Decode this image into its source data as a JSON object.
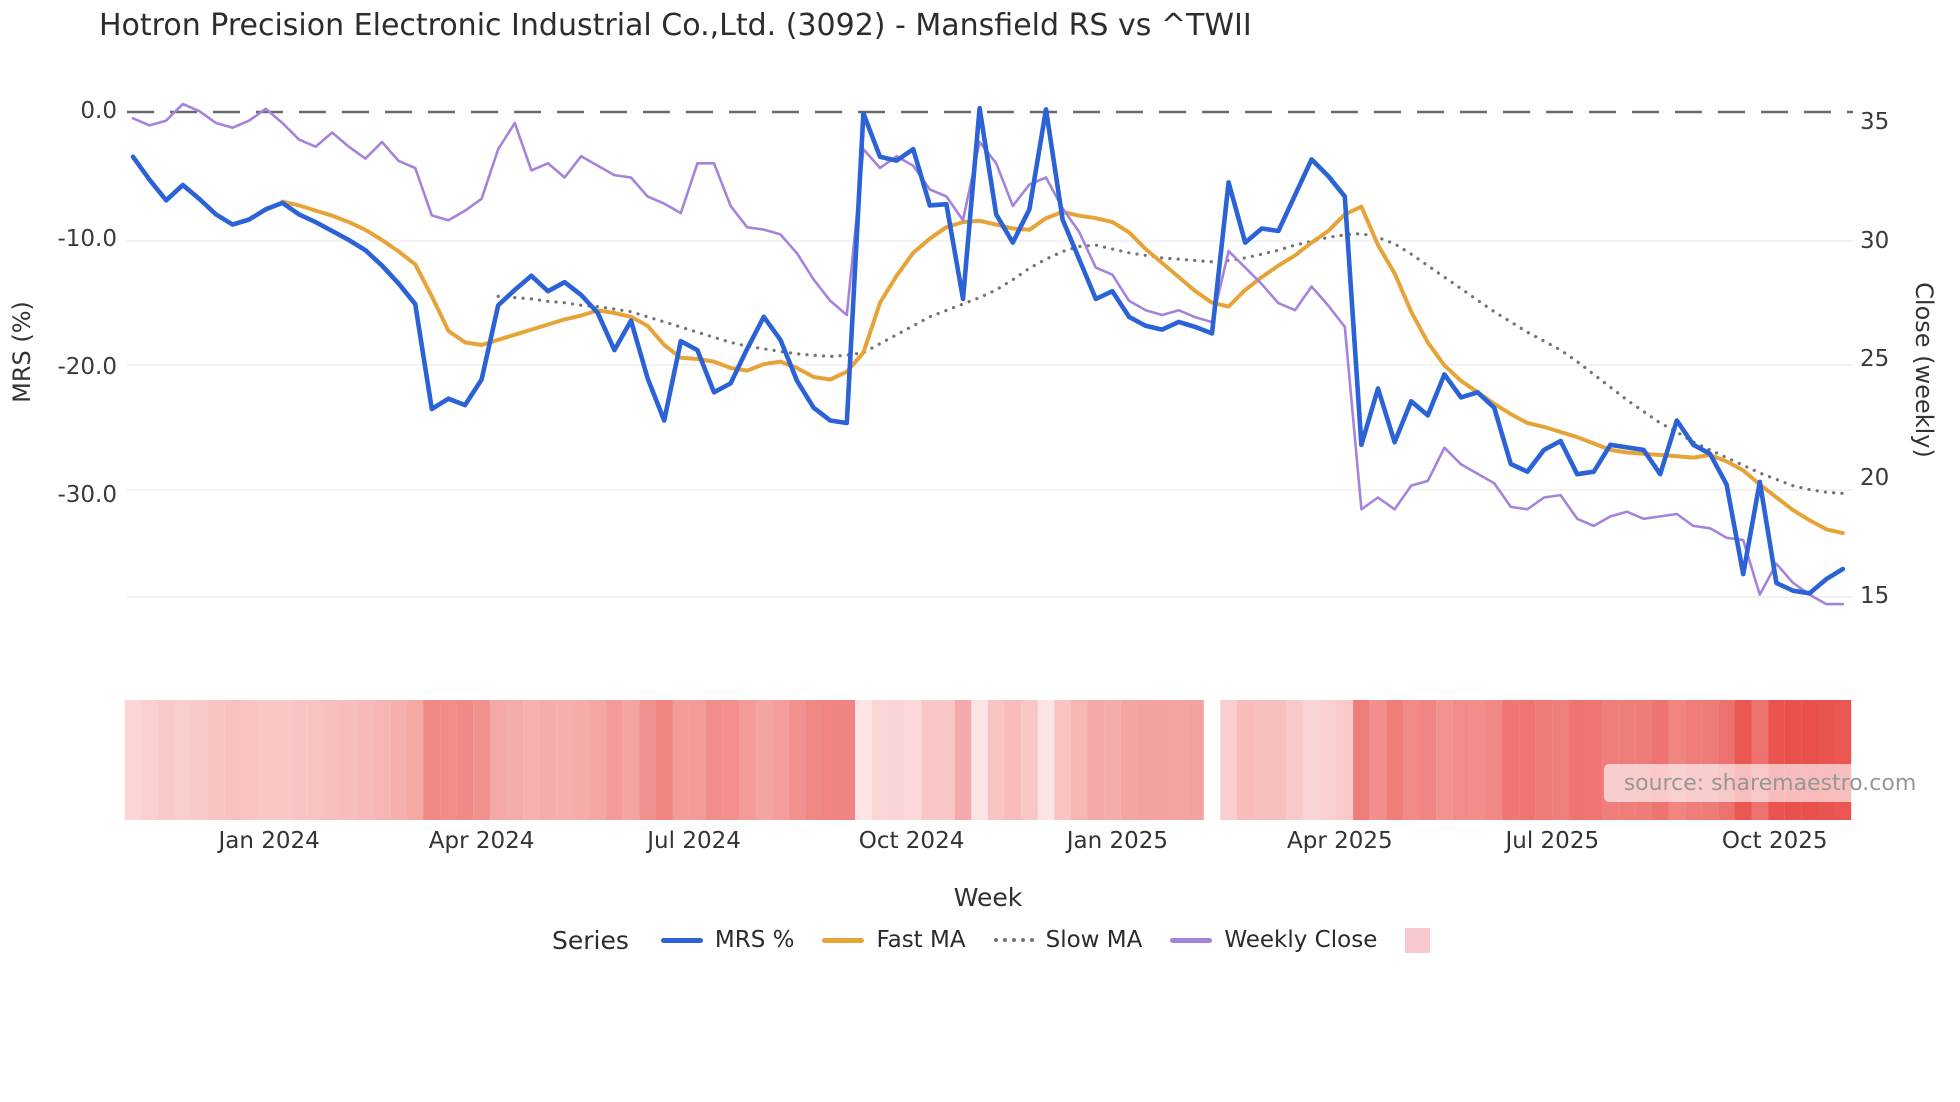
{
  "title": "Hotron Precision Electronic Industrial Co.,Ltd. (3092) - Mansfield RS vs ^TWII",
  "source_note": "source: sharemaestro.com",
  "axes": {
    "left": {
      "title": "MRS (%)",
      "tick_labels": [
        "0.0",
        "-10.0",
        "-20.0",
        "-30.0"
      ],
      "tick_values": [
        0,
        -10,
        -20,
        -30
      ]
    },
    "right": {
      "title": "Close (weekly)",
      "tick_labels": [
        "35",
        "30",
        "25",
        "20",
        "15"
      ],
      "tick_values": [
        35,
        30,
        25,
        20,
        15
      ]
    },
    "x": {
      "title": "Week",
      "tick_labels": [
        "Jan 2024",
        "Apr 2024",
        "Jul 2024",
        "Oct 2024",
        "Jan 2025",
        "Apr 2025",
        "Jul 2025",
        "Oct 2025"
      ],
      "tick_week_index": [
        8.2,
        21.0,
        33.8,
        46.9,
        59.3,
        72.7,
        85.5,
        98.9
      ]
    }
  },
  "legend": {
    "title": "Series",
    "items": [
      {
        "label": "MRS %",
        "color": "#2b62d5",
        "swatch": "line"
      },
      {
        "label": "Fast MA",
        "color": "#e6a338",
        "swatch": "line"
      },
      {
        "label": "Slow MA",
        "color": "#737373",
        "swatch": "dotted"
      },
      {
        "label": "Weekly Close",
        "color": "#a583db",
        "swatch": "line"
      },
      {
        "label": "",
        "color": "#f9c9ce",
        "swatch": "square"
      }
    ]
  },
  "colors": {
    "grid": "#ededf2",
    "zero_line": "#4f4f4f",
    "heat_low": "#fce4e4",
    "heat_high": "#e94e4a"
  },
  "chart_data": {
    "type": "line",
    "x_unit": "week",
    "weeks": 104,
    "x_range_months": [
      "Nov 2023",
      "Nov 2025"
    ],
    "ylim_left": [
      -40,
      2
    ],
    "ylim_right": [
      13.5,
      36.5
    ],
    "zero_reference_line": 0,
    "grid": "horizontal-only",
    "legend_position": "bottom",
    "series": [
      {
        "name": "MRS %",
        "axis": "left",
        "color": "#2b62d5",
        "style": "solid",
        "width": 4.6,
        "values": [
          -3.5,
          -5.3,
          -6.9,
          -5.7,
          -6.8,
          -8.0,
          -8.8,
          -8.4,
          -7.6,
          -7.1,
          -8.0,
          -8.6,
          -9.3,
          -10.0,
          -10.8,
          -12.0,
          -13.4,
          -15.0,
          -23.2,
          -22.4,
          -22.9,
          -20.9,
          -15.1,
          -13.9,
          -12.8,
          -14.0,
          -13.3,
          -14.3,
          -15.7,
          -18.6,
          -16.3,
          -20.8,
          -24.1,
          -17.9,
          -18.6,
          -21.9,
          -21.2,
          -18.5,
          -16.0,
          -17.8,
          -21.0,
          -23.1,
          -24.1,
          -24.3,
          -0.1,
          -3.5,
          -3.8,
          -2.9,
          -7.3,
          -7.2,
          -14.6,
          0.3,
          -8.0,
          -10.2,
          -7.6,
          0.2,
          -8.4,
          -11.5,
          -14.6,
          -14.0,
          -16.0,
          -16.7,
          -17.0,
          -16.4,
          -16.8,
          -17.3,
          -5.5,
          -10.2,
          -9.1,
          -9.3,
          -6.5,
          -3.7,
          -5.0,
          -6.6,
          -26.0,
          -21.6,
          -25.8,
          -22.6,
          -23.7,
          -20.5,
          -22.3,
          -21.9,
          -23.1,
          -27.5,
          -28.1,
          -26.4,
          -25.7,
          -28.3,
          -28.1,
          -26.0,
          -26.2,
          -26.4,
          -28.3,
          -24.1,
          -26.0,
          -26.7,
          -29.1,
          -36.1,
          -28.9,
          -36.8,
          -37.4,
          -37.6,
          -36.5,
          -35.7
        ]
      },
      {
        "name": "Fast MA",
        "axis": "left",
        "color": "#e6a338",
        "style": "solid",
        "width": 4.0,
        "values": [
          null,
          null,
          null,
          null,
          null,
          null,
          null,
          null,
          null,
          -7.0,
          -7.3,
          -7.7,
          -8.1,
          -8.6,
          -9.2,
          -10.0,
          -10.9,
          -11.9,
          -14.4,
          -17.1,
          -18.0,
          -18.2,
          -17.8,
          -17.4,
          -17.0,
          -16.6,
          -16.2,
          -15.9,
          -15.5,
          -15.7,
          -16.0,
          -16.7,
          -18.2,
          -19.2,
          -19.3,
          -19.5,
          -20.0,
          -20.2,
          -19.7,
          -19.5,
          -20.0,
          -20.7,
          -20.9,
          -20.3,
          -18.8,
          -14.9,
          -12.8,
          -11.0,
          -9.9,
          -9.0,
          -8.6,
          -8.5,
          -8.8,
          -9.1,
          -9.2,
          -8.3,
          -7.8,
          -8.1,
          -8.3,
          -8.6,
          -9.4,
          -10.7,
          -11.8,
          -12.9,
          -14.0,
          -14.9,
          -15.2,
          -13.9,
          -12.9,
          -12.0,
          -11.2,
          -10.2,
          -9.3,
          -8.0,
          -7.4,
          -10.4,
          -12.6,
          -15.6,
          -18.0,
          -19.8,
          -21.0,
          -21.9,
          -22.8,
          -23.6,
          -24.3,
          -24.6,
          -25.0,
          -25.4,
          -25.9,
          -26.4,
          -26.6,
          -26.7,
          -26.8,
          -26.9,
          -27.0,
          -26.8,
          -27.3,
          -28.0,
          -29.1,
          -30.1,
          -31.1,
          -31.9,
          -32.6,
          -32.9
        ]
      },
      {
        "name": "Slow MA",
        "axis": "left",
        "color": "#737373",
        "style": "dotted",
        "width": 3.2,
        "values": [
          null,
          null,
          null,
          null,
          null,
          null,
          null,
          null,
          null,
          null,
          null,
          null,
          null,
          null,
          null,
          null,
          null,
          null,
          null,
          null,
          null,
          null,
          -14.4,
          -14.5,
          -14.6,
          -14.8,
          -14.9,
          -15.1,
          -15.2,
          -15.4,
          -15.6,
          -16.0,
          -16.4,
          -16.8,
          -17.2,
          -17.6,
          -18.0,
          -18.3,
          -18.5,
          -18.7,
          -18.9,
          -19.0,
          -19.1,
          -19.0,
          -18.8,
          -18.1,
          -17.4,
          -16.7,
          -16.0,
          -15.5,
          -15.0,
          -14.5,
          -13.9,
          -13.1,
          -12.2,
          -11.5,
          -10.9,
          -10.5,
          -10.4,
          -10.7,
          -11.0,
          -11.2,
          -11.4,
          -11.5,
          -11.6,
          -11.7,
          -11.6,
          -11.4,
          -11.1,
          -10.8,
          -10.4,
          -10.1,
          -9.8,
          -9.6,
          -9.5,
          -9.8,
          -10.3,
          -11.1,
          -12.0,
          -12.9,
          -13.8,
          -14.7,
          -15.6,
          -16.4,
          -17.2,
          -17.9,
          -18.6,
          -19.5,
          -20.5,
          -21.5,
          -22.5,
          -23.4,
          -24.3,
          -25.0,
          -25.8,
          -26.4,
          -27.0,
          -27.6,
          -28.2,
          -28.7,
          -29.2,
          -29.5,
          -29.7,
          -29.8
        ]
      },
      {
        "name": "Weekly Close",
        "axis": "right",
        "color": "#a583db",
        "style": "solid",
        "width": 2.6,
        "values": [
          35.2,
          34.9,
          35.1,
          35.8,
          35.5,
          35.0,
          34.8,
          35.1,
          35.6,
          35.0,
          34.3,
          34.0,
          34.6,
          34.0,
          33.5,
          34.2,
          33.4,
          33.1,
          31.1,
          30.9,
          31.3,
          31.8,
          33.9,
          35.0,
          33.0,
          33.3,
          32.7,
          33.6,
          33.2,
          32.8,
          32.7,
          31.9,
          31.6,
          31.2,
          33.3,
          33.3,
          31.5,
          30.6,
          30.5,
          30.3,
          29.5,
          28.4,
          27.5,
          26.9,
          33.9,
          33.1,
          33.6,
          33.2,
          32.2,
          31.9,
          30.9,
          34.2,
          33.3,
          31.5,
          32.4,
          32.7,
          31.4,
          30.4,
          28.9,
          28.6,
          27.5,
          27.1,
          26.9,
          27.1,
          26.8,
          26.6,
          29.6,
          28.9,
          28.2,
          27.4,
          27.1,
          28.1,
          27.3,
          26.4,
          18.7,
          19.2,
          18.7,
          19.7,
          19.9,
          21.3,
          20.6,
          20.2,
          19.8,
          18.8,
          18.7,
          19.2,
          19.3,
          18.3,
          18.0,
          18.4,
          18.6,
          18.3,
          18.4,
          18.5,
          18.0,
          17.9,
          17.5,
          17.4,
          15.1,
          16.4,
          15.6,
          15.1,
          14.7,
          14.7
        ]
      }
    ],
    "heatmap_strip": {
      "description": "weekly heat band shaded by MRS depth (light pink near 0%, deep red near -38%)",
      "source_series": "MRS %",
      "gap_week_index": 65,
      "value_at_light": 0,
      "value_at_deep": -38
    }
  }
}
